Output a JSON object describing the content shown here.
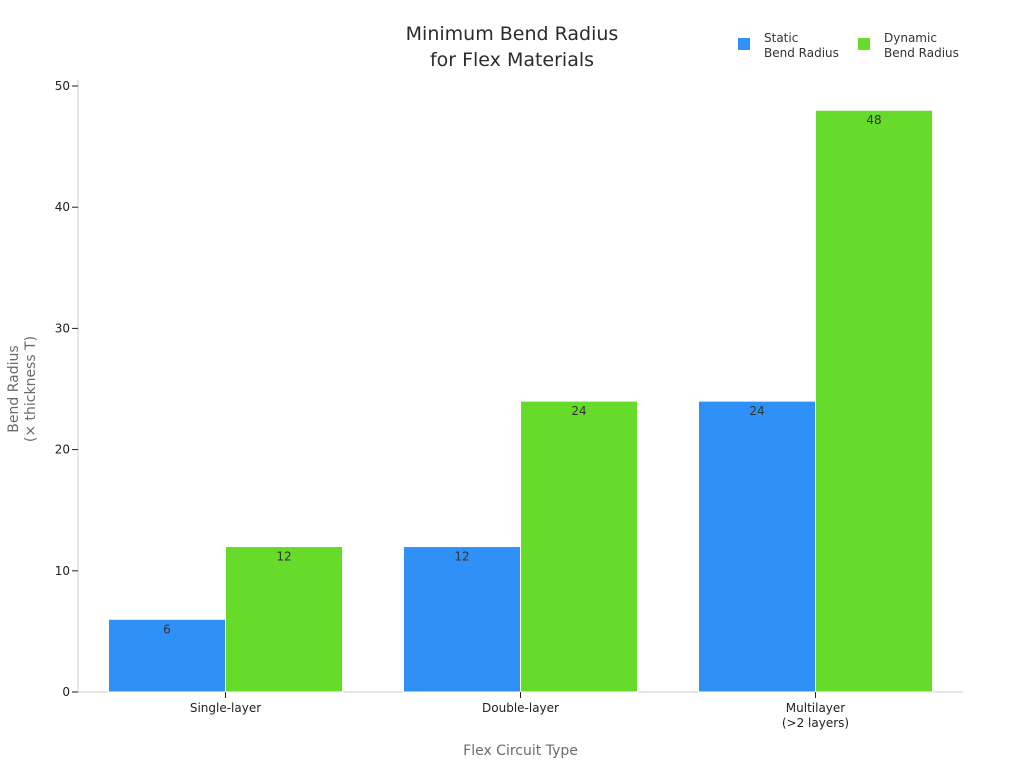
{
  "chart_data": {
    "type": "bar",
    "title": [
      "Minimum Bend Radius",
      "for Flex Materials"
    ],
    "categories": [
      [
        "Single-layer"
      ],
      [
        "Double-layer"
      ],
      [
        "Multilayer",
        "(>2 layers)"
      ]
    ],
    "series": [
      {
        "name": [
          "Static",
          "Bend Radius"
        ],
        "values": [
          6,
          12,
          24
        ],
        "color": "#2f91f7"
      },
      {
        "name": [
          "Dynamic",
          "Bend Radius"
        ],
        "values": [
          12,
          24,
          48
        ],
        "color": "#66db2a"
      }
    ],
    "xlabel": "Flex Circuit Type",
    "ylabel": [
      "Bend Radius",
      "(× thickness T)"
    ],
    "ylim": [
      0,
      50
    ],
    "yticks": [
      0,
      10,
      20,
      30,
      40,
      50
    ],
    "legend_position": "top-right",
    "grid": false,
    "data_labels": true
  }
}
